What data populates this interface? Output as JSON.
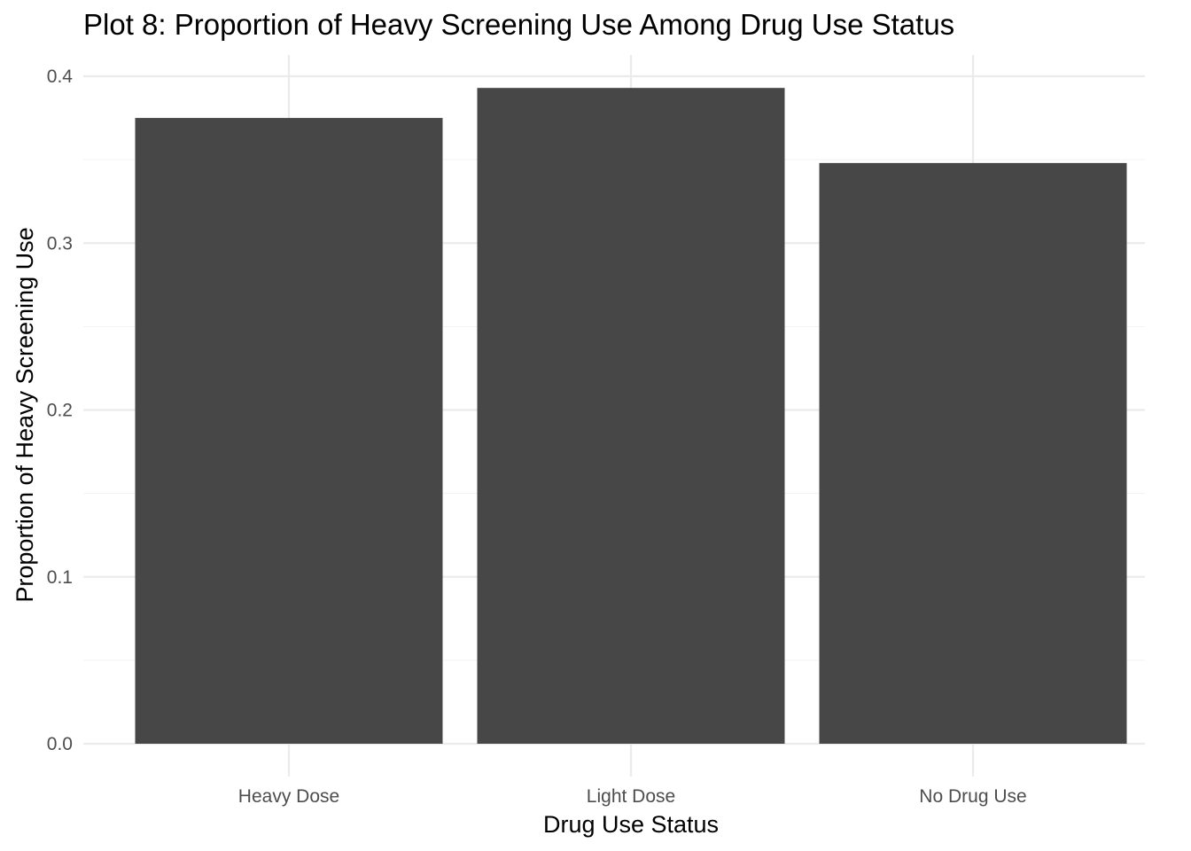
{
  "chart_data": {
    "type": "bar",
    "title": "Plot 8: Proportion of Heavy Screening Use Among Drug Use Status",
    "xlabel": "Drug Use Status",
    "ylabel": "Proportion of Heavy Screening Use",
    "categories": [
      "Heavy Dose",
      "Light Dose",
      "No Drug Use"
    ],
    "values": [
      0.375,
      0.393,
      0.348
    ],
    "ylim": [
      0,
      0.4
    ],
    "yticks": [
      "0.0",
      "0.1",
      "0.2",
      "0.3",
      "0.4"
    ],
    "grid": true,
    "bar_color": "#474747"
  }
}
